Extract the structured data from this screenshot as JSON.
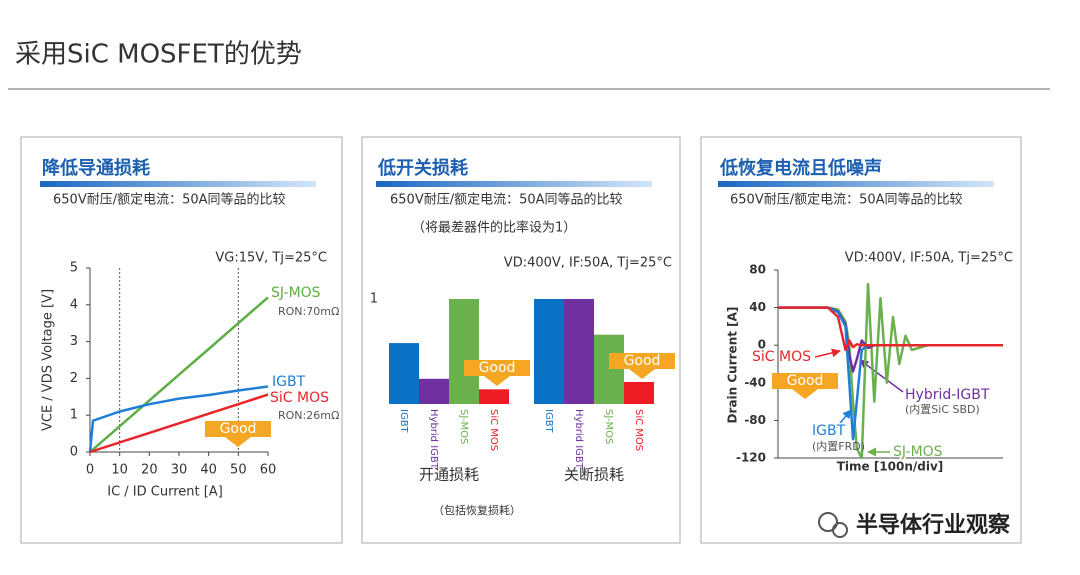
{
  "title": "采用SiC MOSFET的优势",
  "watermark": "半导体行业观察",
  "chart_data": [
    {
      "type": "line",
      "title": "降低导通损耗",
      "subtitle": "650V耐压/额定电流：50A同等品的比较",
      "condition": "VG:15V, Tj=25°C",
      "x_label": "IC / ID Current [A]",
      "y_label": "VCE / VDS Voltage [V]",
      "x": [
        0,
        1,
        10,
        20,
        30,
        40,
        50,
        60
      ],
      "series": [
        {
          "name": "SJ-MOS",
          "color": "#5fae45",
          "values": [
            0,
            0.07,
            0.7,
            1.4,
            2.1,
            2.8,
            3.5,
            4.2
          ]
        },
        {
          "name": "IGBT",
          "color": "#1f7fd6",
          "values": [
            0,
            0.85,
            1.1,
            1.3,
            1.45,
            1.55,
            1.67,
            1.78
          ]
        },
        {
          "name": "SiC MOS",
          "color": "#e8262b",
          "values": [
            0,
            0.026,
            0.26,
            0.52,
            0.78,
            1.04,
            1.3,
            1.56
          ]
        }
      ],
      "xlim": [
        0,
        60
      ],
      "xticks": [
        0,
        10,
        20,
        30,
        40,
        50,
        60
      ],
      "ylim": [
        0,
        5
      ],
      "yticks": [
        0,
        1,
        2,
        3,
        4,
        5
      ],
      "vlines": [
        10,
        50
      ],
      "notes": [
        "RON:70mΩ",
        "RON:26mΩ"
      ],
      "badge": "Good"
    },
    {
      "type": "bar",
      "title": "低开关损耗",
      "subtitle": "650V耐压/额定电流：50A同等品的比较",
      "note": "（将最差器件的比率设为1）",
      "condition": "VD:400V, IF:50A, Tj=25°C",
      "categories": [
        "开通损耗",
        "关断损耗"
      ],
      "series": [
        {
          "name": "IGBT",
          "color": "#0a72c4",
          "values": [
            0.58,
            1
          ]
        },
        {
          "name": "Hybrid IGBT",
          "color": "#7030a0",
          "values": [
            0.24,
            1
          ]
        },
        {
          "name": "SJ-MOS",
          "color": "#6ab04c",
          "values": [
            1,
            0.66
          ]
        },
        {
          "name": "SiC MOS",
          "color": "#ee1c25",
          "values": [
            0.14,
            0.21
          ]
        }
      ],
      "ylim": [
        0,
        1.2
      ],
      "yticks": [
        1
      ],
      "footnote": "（包括恢复损耗）",
      "badge": "Good"
    },
    {
      "type": "line",
      "title": "低恢复电流且低噪声",
      "subtitle": "650V耐压/额定电流：50A同等品的比较",
      "condition": "VD:400V, IF:50A, Tj=25°C",
      "x_label": "Time [100n/div]",
      "y_label": "Drain Current [A]",
      "x": [
        0,
        2,
        2.4,
        2.7,
        2.85,
        3,
        3.15,
        3.35,
        3.6,
        3.85,
        4.1,
        4.35,
        4.6,
        4.85,
        5.1,
        5.35,
        6,
        9
      ],
      "series": [
        {
          "name": "SJ-MOS",
          "color": "#6ab04c",
          "values": [
            40,
            40,
            38,
            25,
            0,
            -60,
            -110,
            -120,
            65,
            -60,
            50,
            -40,
            30,
            -20,
            10,
            -5,
            0,
            0
          ]
        },
        {
          "name": "Hybrid-IGBT",
          "color": "#7030a0",
          "values": [
            40,
            40,
            36,
            22,
            -10,
            -28,
            -15,
            5,
            -3,
            0,
            0,
            0,
            0,
            0,
            0,
            0,
            0,
            0
          ]
        },
        {
          "name": "IGBT",
          "color": "#1f7fd6",
          "values": [
            40,
            40,
            35,
            20,
            -40,
            -100,
            -60,
            -5,
            0,
            0,
            0,
            0,
            0,
            0,
            0,
            0,
            0,
            0
          ]
        },
        {
          "name": "SiC MOS",
          "color": "#e8262b",
          "values": [
            40,
            40,
            30,
            -5,
            5,
            -2,
            1,
            0,
            0,
            0,
            0,
            0,
            0,
            0,
            0,
            0,
            0,
            0
          ]
        }
      ],
      "xlim": [
        0,
        9
      ],
      "ylim": [
        -120,
        80
      ],
      "yticks": [
        80,
        40,
        0,
        -40,
        -80,
        -120
      ],
      "notes": [
        "(内置SiC SBD)",
        "(内置FRD)"
      ],
      "badge": "Good"
    }
  ]
}
